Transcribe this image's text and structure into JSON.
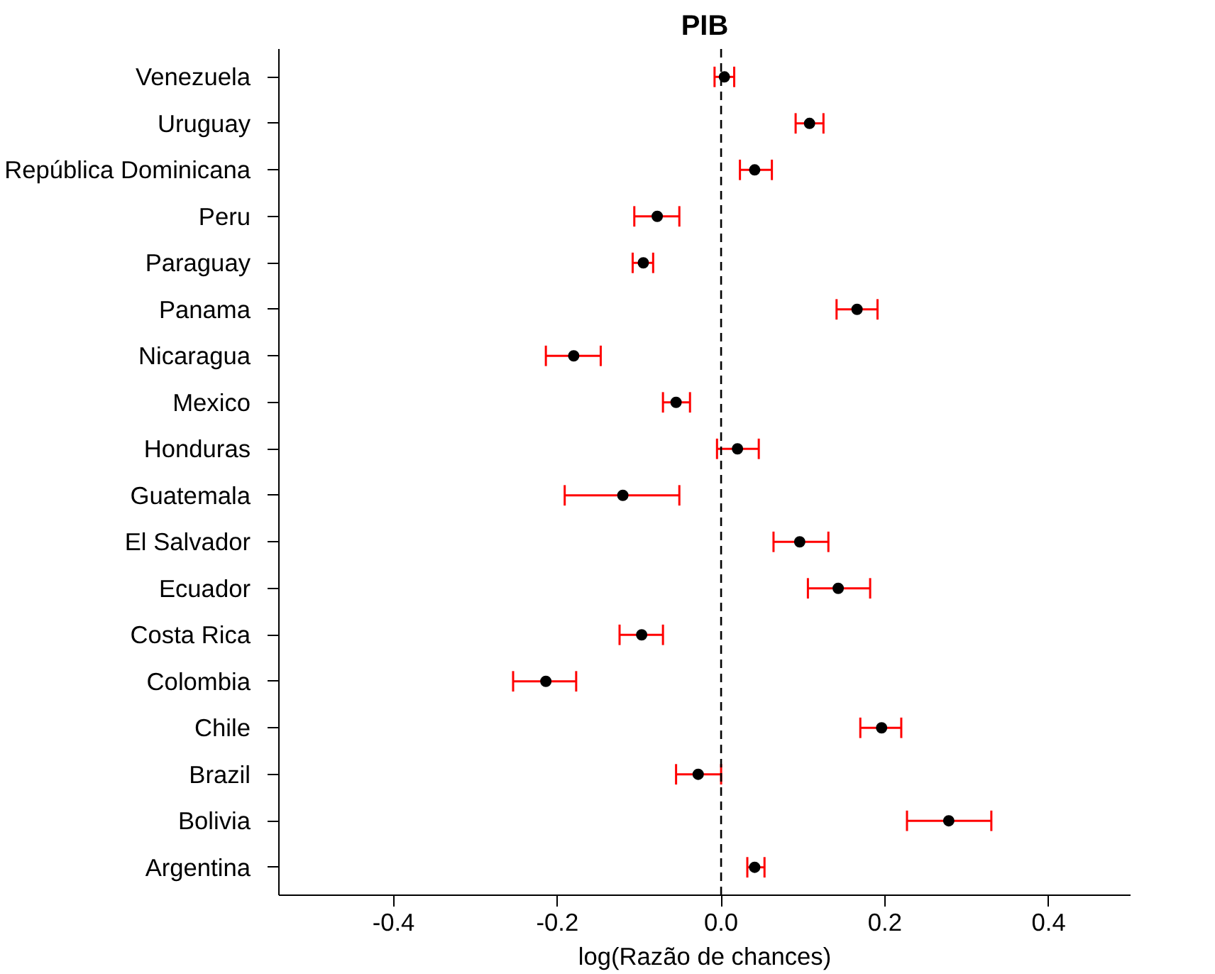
{
  "chart_data": {
    "type": "scatter",
    "title": "PIB",
    "xlabel": "log(Razão de chances)",
    "orientation": "horizontal",
    "categories": [
      "Venezuela",
      "Uruguay",
      "República Dominicana",
      "Peru",
      "Paraguay",
      "Panama",
      "Nicaragua",
      "Mexico",
      "Honduras",
      "Guatemala",
      "El Salvador",
      "Ecuador",
      "Costa Rica",
      "Colombia",
      "Chile",
      "Brazil",
      "Bolivia",
      "Argentina"
    ],
    "series": [
      {
        "color": "#000000",
        "values": [
          0.004,
          0.108,
          0.041,
          -0.078,
          -0.095,
          0.166,
          -0.18,
          -0.055,
          0.02,
          -0.12,
          0.096,
          0.143,
          -0.097,
          -0.214,
          0.196,
          -0.028,
          0.278,
          0.041
        ],
        "errors": [
          [
            -0.008,
            0.016
          ],
          [
            0.091,
            0.125
          ],
          [
            0.023,
            0.062
          ],
          [
            -0.106,
            -0.051
          ],
          [
            -0.108,
            -0.083
          ],
          [
            0.141,
            0.191
          ],
          [
            -0.214,
            -0.147
          ],
          [
            -0.071,
            -0.038
          ],
          [
            -0.005,
            0.046
          ],
          [
            -0.191,
            -0.051
          ],
          [
            0.064,
            0.131
          ],
          [
            0.106,
            0.182
          ],
          [
            -0.124,
            -0.071
          ],
          [
            -0.254,
            -0.177
          ],
          [
            0.17,
            0.22
          ],
          [
            -0.055,
            0.0
          ],
          [
            0.227,
            0.33
          ],
          [
            0.032,
            0.053
          ]
        ]
      }
    ],
    "xlim": [
      -0.54,
      0.5
    ],
    "xticks": [
      -0.4,
      -0.2,
      {
        "value": 0.0,
        "label": "0.0"
      },
      0.2,
      0.4
    ],
    "ref_lines": [
      {
        "axis": "x",
        "value": 0.0,
        "line_style": "dashed",
        "color": "#000000"
      }
    ],
    "grid": false,
    "marker": "circle"
  }
}
